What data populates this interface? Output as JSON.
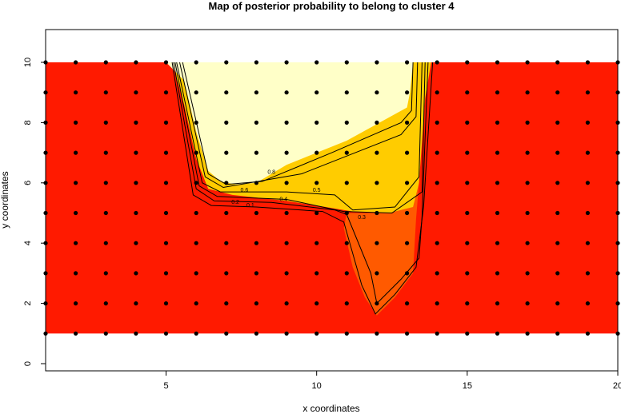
{
  "chart_data": {
    "type": "heatmap",
    "title": "Map of posterior probability to belong to cluster  4",
    "xlabel": "x coordinates",
    "ylabel": "y coordinates",
    "xlim": [
      1,
      20
    ],
    "ylim": [
      0,
      11
    ],
    "x_ticks": [
      5,
      10,
      15,
      20
    ],
    "y_ticks": [
      0,
      2,
      4,
      6,
      8,
      10
    ],
    "colors": {
      "low": "#ff1a00",
      "mid_low": "#ff5a00",
      "mid": "#ffcc00",
      "mid_high": "#ffff40",
      "high": "#ffffc8",
      "grid_point": "#000000",
      "contour": "#000000"
    },
    "grid_points": {
      "x": [
        1,
        2,
        3,
        4,
        5,
        6,
        7,
        8,
        9,
        10,
        11,
        12,
        13,
        14,
        15,
        16,
        17,
        18,
        19,
        20
      ],
      "y": [
        1,
        2,
        3,
        4,
        5,
        6,
        7,
        8,
        9,
        10
      ]
    },
    "contour_labels": [
      {
        "text": "0.8",
        "x": 8.5,
        "y": 6.3
      },
      {
        "text": "0.6",
        "x": 7.6,
        "y": 5.7
      },
      {
        "text": "0.5",
        "x": 10.0,
        "y": 5.7
      },
      {
        "text": "0.4",
        "x": 8.9,
        "y": 5.4
      },
      {
        "text": "0.2",
        "x": 7.3,
        "y": 5.3
      },
      {
        "text": "0.1",
        "x": 7.8,
        "y": 5.2
      },
      {
        "text": "0.3",
        "x": 11.5,
        "y": 4.8
      }
    ]
  }
}
